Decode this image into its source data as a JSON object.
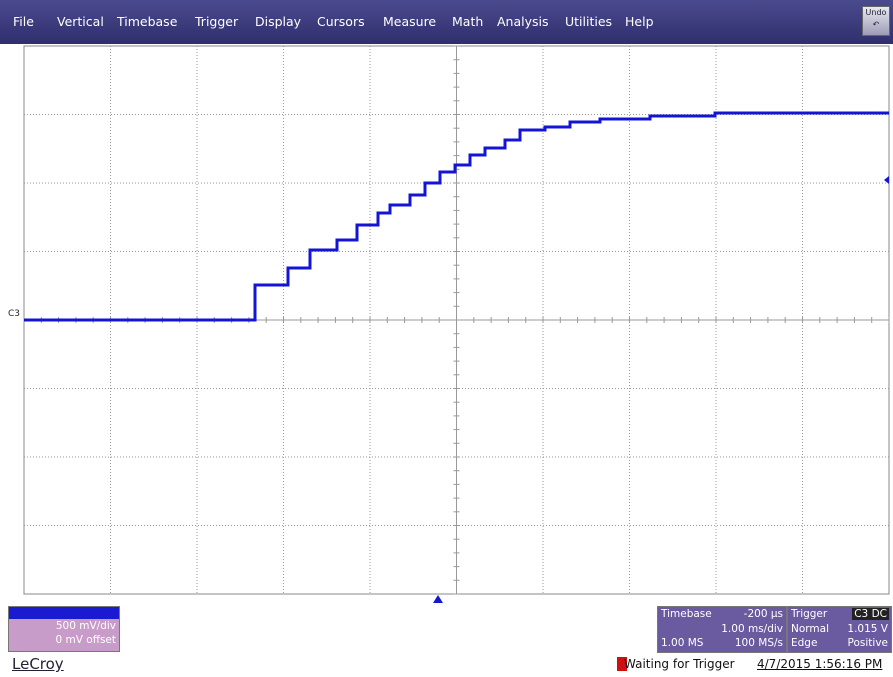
{
  "menu": [
    "File",
    "Vertical",
    "Timebase",
    "Trigger",
    "Display",
    "Cursors",
    "Measure",
    "Math",
    "Analysis",
    "Utilities",
    "Help"
  ],
  "undo": "Undo",
  "trace_label": "C3",
  "channel": {
    "name": "C3",
    "scale": "500 mV/div",
    "offset": "0 mV offset"
  },
  "timebase": {
    "title": "Timebase",
    "delay": "-200 µs",
    "div": "1.00 ms/div",
    "samples": "1.00 MS",
    "rate": "100 MS/s"
  },
  "trigger": {
    "title": "Trigger",
    "source": "C3 DC",
    "mode": "Normal",
    "level": "1.015 V",
    "type": "Edge",
    "slope": "Positive"
  },
  "logo": "LeCroy",
  "status": "Waiting for Trigger",
  "datetime": "4/7/2015 1:56:16 PM"
}
